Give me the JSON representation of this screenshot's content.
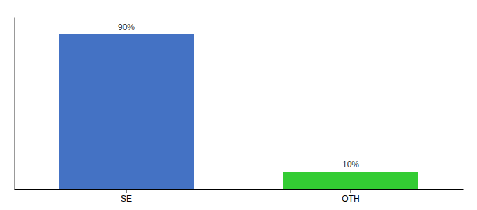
{
  "chart_data": {
    "type": "bar",
    "categories": [
      "SE",
      "OTH"
    ],
    "values": [
      90,
      10
    ],
    "value_labels": [
      "90%",
      "10%"
    ],
    "colors": [
      "#4472c4",
      "#33cc33"
    ],
    "ylim": [
      0,
      100
    ],
    "data_labels": true,
    "tick_labels": "x"
  }
}
